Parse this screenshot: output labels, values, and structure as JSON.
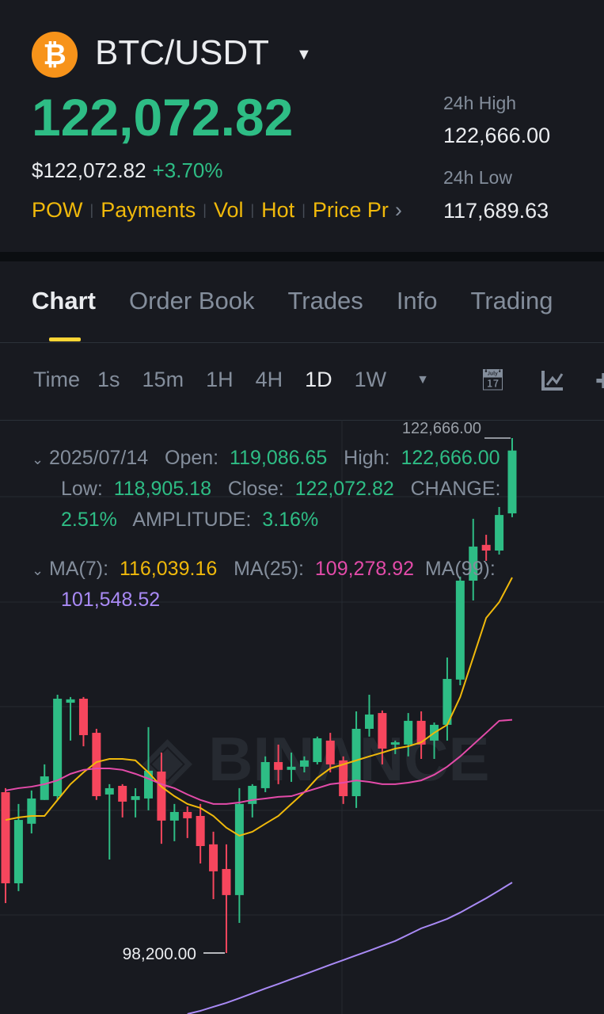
{
  "header": {
    "pair": "BTC/USDT",
    "coin_icon": "bitcoin-icon",
    "last_price": "122,072.82",
    "usd_price": "$122,072.82",
    "change_pct": "+3.70%",
    "tags": [
      "POW",
      "Payments",
      "Vol",
      "Hot",
      "Price Pr"
    ],
    "stats": [
      {
        "label": "24h High",
        "value": "122,666.00"
      },
      {
        "label": "24h Low",
        "value": "117,689.63"
      }
    ]
  },
  "tabs": [
    "Chart",
    "Order Book",
    "Trades",
    "Info",
    "Trading"
  ],
  "active_tab": "Chart",
  "intervals": [
    "Time",
    "1s",
    "15m",
    "1H",
    "4H",
    "1D",
    "1W"
  ],
  "active_interval": "1D",
  "ohlc": {
    "date": "2025/07/14",
    "open_label": "Open:",
    "open": "119,086.65",
    "high_label": "High:",
    "high": "122,666.00",
    "low_label": "Low:",
    "low": "118,905.18",
    "close_label": "Close:",
    "close": "122,072.82",
    "change_label": "CHANGE:",
    "change": "2.51%",
    "amplitude_label": "AMPLITUDE:",
    "amplitude": "3.16%"
  },
  "ma": {
    "ma7_label": "MA(7):",
    "ma7": "116,039.16",
    "ma25_label": "MA(25):",
    "ma25": "109,278.92",
    "ma99_label": "MA(99):",
    "ma99": "101,548.52"
  },
  "colors": {
    "up": "#2ebd85",
    "down": "#f6465d",
    "ma7": "#f0b90b",
    "ma25": "#e34ba9",
    "ma99": "#a98af5",
    "accent": "#fcd535"
  },
  "watermark": "BINANCE",
  "chart_data": {
    "type": "candlestick",
    "interval": "1D",
    "ylim": [
      95300,
      123530
    ],
    "grid": true,
    "max_label": "122,666.00",
    "min_label": "98,200.00",
    "candles": [
      [
        105840,
        106030,
        100570,
        101510
      ],
      [
        101510,
        105280,
        101140,
        104520
      ],
      [
        104340,
        105920,
        103880,
        105540
      ],
      [
        105470,
        107160,
        105470,
        106590
      ],
      [
        105650,
        110470,
        105470,
        110280
      ],
      [
        110090,
        110360,
        108290,
        110250
      ],
      [
        110280,
        110360,
        108020,
        108550
      ],
      [
        108660,
        108850,
        105470,
        105650
      ],
      [
        105730,
        106220,
        102640,
        106030
      ],
      [
        106140,
        106220,
        104640,
        105390
      ],
      [
        105470,
        106030,
        104640,
        105650
      ],
      [
        105540,
        108930,
        104980,
        106860
      ],
      [
        106820,
        107720,
        103390,
        104490
      ],
      [
        104490,
        105280,
        103510,
        104900
      ],
      [
        104900,
        105160,
        103660,
        104600
      ],
      [
        104710,
        105280,
        102450,
        103280
      ],
      [
        103360,
        103960,
        100760,
        102080
      ],
      [
        102190,
        103360,
        98200,
        100950
      ],
      [
        100950,
        106030,
        99630,
        105280
      ],
      [
        105280,
        106220,
        104640,
        106140
      ],
      [
        106030,
        107540,
        105840,
        107270
      ],
      [
        107270,
        108100,
        106220,
        106900
      ],
      [
        106900,
        107720,
        106330,
        107050
      ],
      [
        107050,
        107540,
        106780,
        107350
      ],
      [
        107270,
        108480,
        107160,
        108400
      ],
      [
        108290,
        108660,
        106780,
        107160
      ],
      [
        107350,
        107540,
        105280,
        105650
      ],
      [
        105650,
        109680,
        105090,
        108850
      ],
      [
        108850,
        110470,
        108480,
        109530
      ],
      [
        109600,
        109720,
        107160,
        107910
      ],
      [
        108100,
        108290,
        107650,
        108210
      ],
      [
        108100,
        109600,
        107540,
        109230
      ],
      [
        109230,
        109680,
        107420,
        108100
      ],
      [
        108290,
        109150,
        107420,
        109040
      ],
      [
        109040,
        112240,
        108290,
        111220
      ],
      [
        111190,
        116080,
        110920,
        115890
      ],
      [
        115890,
        118830,
        114950,
        117510
      ],
      [
        117590,
        118070,
        116830,
        117320
      ],
      [
        117320,
        119390,
        117130,
        119010
      ],
      [
        119086.65,
        122666,
        118905.18,
        122072.82
      ]
    ],
    "ma7": [
      104520,
      104640,
      104710,
      104710,
      105470,
      106220,
      106780,
      107270,
      107420,
      107420,
      107350,
      106780,
      106100,
      105650,
      105280,
      105090,
      104710,
      104150,
      103770,
      103960,
      104340,
      104710,
      105280,
      105840,
      106520,
      106970,
      107160,
      107350,
      107540,
      107720,
      107910,
      108020,
      108210,
      108660,
      109040,
      110360,
      112240,
      114120,
      114870,
      116039.16
    ],
    "ma25": [
      105920,
      106030,
      106100,
      106220,
      106400,
      106710,
      106900,
      106970,
      106970,
      106900,
      106710,
      106480,
      106220,
      106030,
      105730,
      105470,
      105280,
      105280,
      105350,
      105470,
      105540,
      105620,
      105650,
      105840,
      106030,
      106220,
      106290,
      106400,
      106330,
      106220,
      106220,
      106290,
      106400,
      106670,
      107050,
      107540,
      108100,
      108660,
      109230,
      109278.92
    ],
    "ma99": [
      null,
      null,
      null,
      null,
      null,
      null,
      null,
      null,
      null,
      null,
      null,
      null,
      null,
      null,
      95300,
      95450,
      95640,
      95830,
      96050,
      96280,
      96510,
      96730,
      96960,
      97180,
      97410,
      97640,
      97860,
      98090,
      98310,
      98540,
      98770,
      99070,
      99370,
      99590,
      99820,
      100120,
      100460,
      100800,
      101170,
      101548.52
    ]
  }
}
